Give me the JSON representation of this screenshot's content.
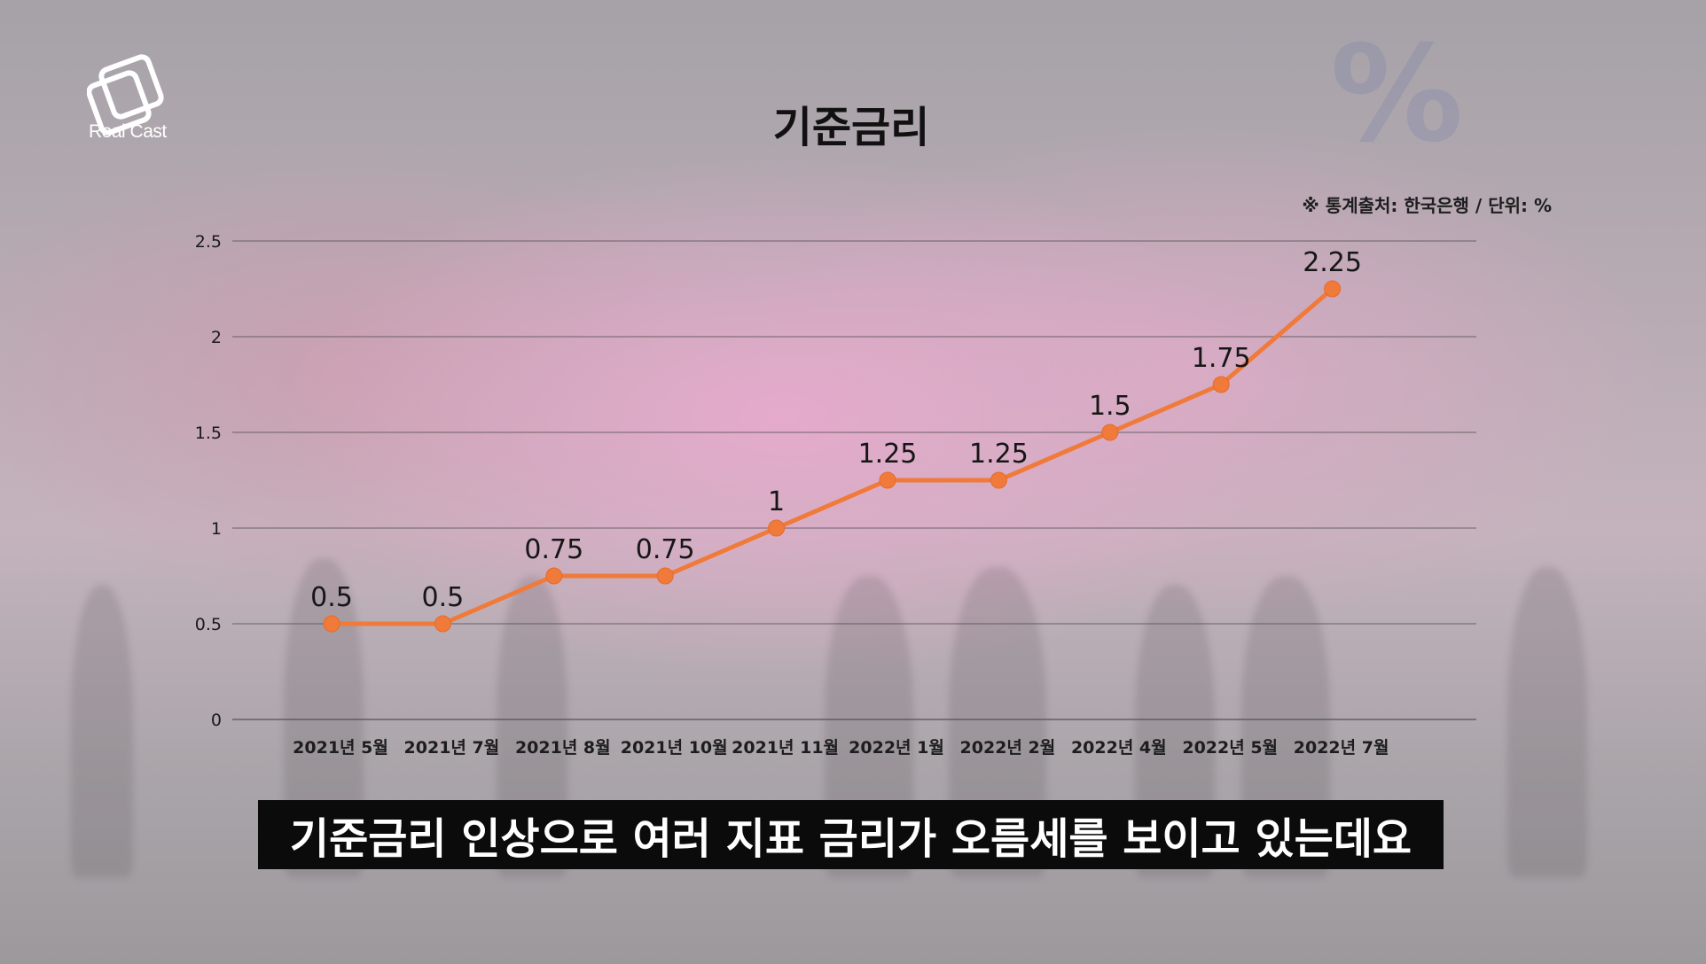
{
  "brand": {
    "name": "Real Cast"
  },
  "title": "기준금리",
  "source_note": "※ 통계출처: 한국은행 / 단위: %",
  "caption": "기준금리 인상으로 여러 지표 금리가 오름세를 보이고 있는데요",
  "colors": {
    "line": "#f07a3a",
    "grid": "#4a4a4a",
    "text": "#1a1a1a",
    "caption_bg": "#0b0b0b"
  },
  "chart_data": {
    "type": "line",
    "title": "기준금리",
    "categories": [
      "2021년 5월",
      "2021년 7월",
      "2021년 8월",
      "2021년 10월",
      "2021년 11월",
      "2022년 1월",
      "2022년 2월",
      "2022년 4월",
      "2022년 5월",
      "2022년 7월"
    ],
    "series": [
      {
        "values": [
          0.5,
          0.5,
          0.75,
          0.75,
          1,
          1.25,
          1.25,
          1.5,
          1.75,
          2.25
        ]
      }
    ],
    "data_labels": [
      "0.5",
      "0.5",
      "0.75",
      "0.75",
      "1",
      "1.25",
      "1.25",
      "1.5",
      "1.75",
      "2.25"
    ],
    "yticks": [
      "0",
      "0.5",
      "1",
      "1.5",
      "2",
      "2.5"
    ],
    "ylim": [
      0,
      2.5
    ],
    "grid": true,
    "legend": "none"
  }
}
